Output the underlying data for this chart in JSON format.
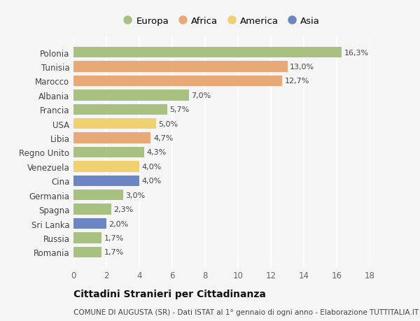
{
  "categories": [
    "Romania",
    "Russia",
    "Sri Lanka",
    "Spagna",
    "Germania",
    "Cina",
    "Venezuela",
    "Regno Unito",
    "Libia",
    "USA",
    "Francia",
    "Albania",
    "Marocco",
    "Tunisia",
    "Polonia"
  ],
  "values": [
    1.7,
    1.7,
    2.0,
    2.3,
    3.0,
    4.0,
    4.0,
    4.3,
    4.7,
    5.0,
    5.7,
    7.0,
    12.7,
    13.0,
    16.3
  ],
  "colors": [
    "#a8c080",
    "#a8c080",
    "#6b86c2",
    "#a8c080",
    "#a8c080",
    "#6b86c2",
    "#f0d070",
    "#a8c080",
    "#e8a878",
    "#f0d070",
    "#a8c080",
    "#a8c080",
    "#e8a878",
    "#e8a878",
    "#a8c080"
  ],
  "labels": [
    "1,7%",
    "1,7%",
    "2,0%",
    "2,3%",
    "3,0%",
    "4,0%",
    "4,0%",
    "4,3%",
    "4,7%",
    "5,0%",
    "5,7%",
    "7,0%",
    "12,7%",
    "13,0%",
    "16,3%"
  ],
  "legend": [
    {
      "label": "Europa",
      "color": "#a8c080"
    },
    {
      "label": "Africa",
      "color": "#e8a878"
    },
    {
      "label": "America",
      "color": "#f0d070"
    },
    {
      "label": "Asia",
      "color": "#6b86c2"
    }
  ],
  "title": "Cittadini Stranieri per Cittadinanza",
  "subtitle": "COMUNE DI AUGUSTA (SR) - Dati ISTAT al 1° gennaio di ogni anno - Elaborazione TUTTITALIA.IT",
  "xlim": [
    0,
    18
  ],
  "xticks": [
    0,
    2,
    4,
    6,
    8,
    10,
    12,
    14,
    16,
    18
  ],
  "bg_color": "#f5f5f5",
  "grid_color": "#ffffff",
  "bar_height": 0.75,
  "label_fontsize": 8,
  "tick_fontsize": 8.5,
  "title_fontsize": 10,
  "subtitle_fontsize": 7.5
}
